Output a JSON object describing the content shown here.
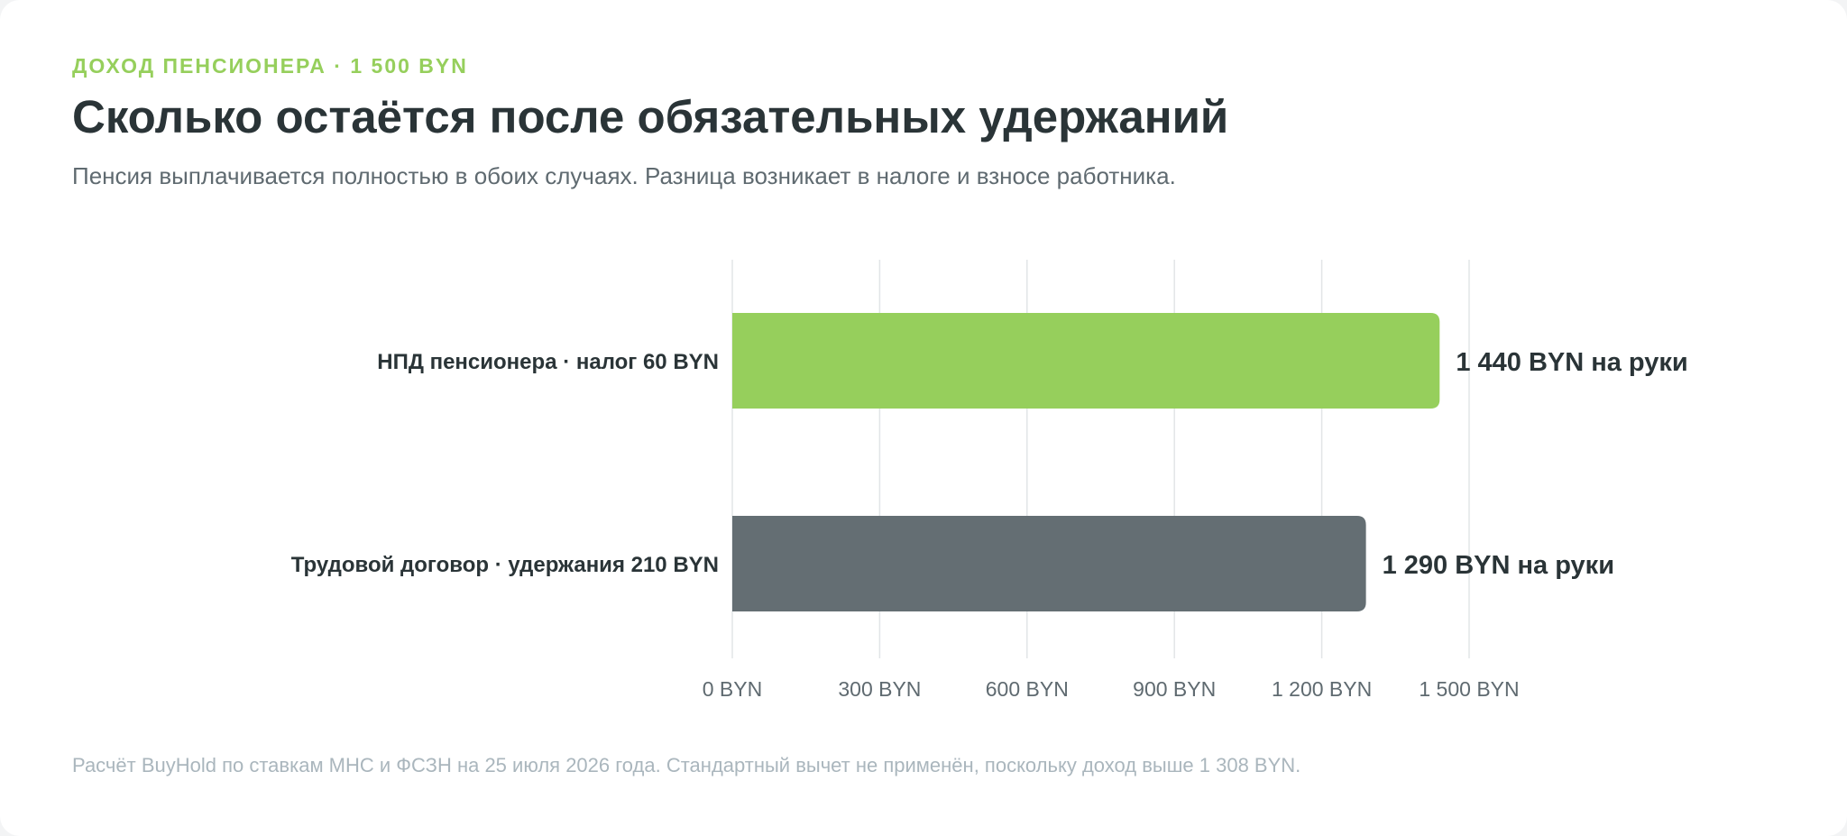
{
  "header": {
    "eyebrow": "ДОХОД ПЕНСИОНЕРА · 1 500 BYN",
    "title": "Сколько остаётся после обязательных удержаний",
    "subtitle": "Пенсия выплачивается полностью в обоих случаях. Разница возникает в налоге и взносе работника."
  },
  "footnote": "Расчёт BuyHold по ставкам МНС и ФСЗН на 25 июля 2026 года. Стандартный вычет не применён, поскольку доход выше 1 308 BYN.",
  "colors": {
    "accent": "#96cf5c",
    "secondary": "#646e73",
    "text_dark": "#2a3437",
    "text_muted": "#5f6a70",
    "gridline": "#e2e5e7"
  },
  "chart_data": {
    "type": "bar",
    "orientation": "horizontal",
    "categories": [
      "НПД пенсионера · налог 60 BYN",
      "Трудовой договор · удержания 210 BYN"
    ],
    "values": [
      1440,
      1290
    ],
    "value_labels": [
      "1 440 BYN на руки",
      "1 290 BYN на руки"
    ],
    "bar_colors": [
      "#96cf5c",
      "#646e73"
    ],
    "xlim": [
      0,
      1500
    ],
    "x_ticks": [
      0,
      300,
      600,
      900,
      1200,
      1500
    ],
    "x_tick_labels": [
      "0 BYN",
      "300 BYN",
      "600 BYN",
      "900 BYN",
      "1 200 BYN",
      "1 500 BYN"
    ],
    "grid": true
  }
}
